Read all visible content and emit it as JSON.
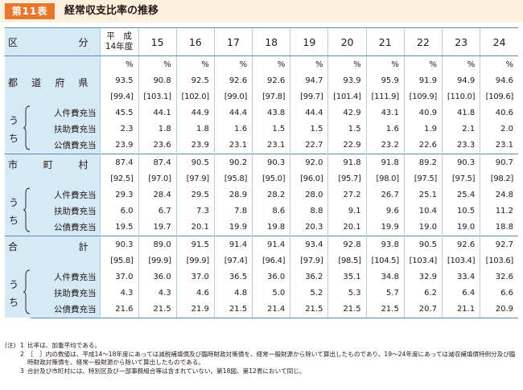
{
  "header": {
    "table_no": "第11表",
    "title": "経常収支比率の推移"
  },
  "columns": {
    "row_header_left": "区",
    "row_header_right": "分",
    "first_year_line1": "平　成",
    "first_year_line2": "14年度",
    "years": [
      "15",
      "16",
      "17",
      "18",
      "19",
      "20",
      "21",
      "22",
      "23",
      "24"
    ]
  },
  "uchi": [
    "う",
    "ち"
  ],
  "sub_labels": [
    "人件費充当",
    "扶助費充当",
    "公債費充当"
  ],
  "groups": [
    {
      "name": [
        "都",
        "道",
        "府",
        "県"
      ],
      "unit": [
        "%",
        "%",
        "%",
        "%",
        "%",
        "%",
        "%",
        "%",
        "%",
        "%",
        "%"
      ],
      "main": [
        "93.5",
        "90.8",
        "92.5",
        "92.6",
        "92.6",
        "94.7",
        "93.9",
        "95.9",
        "91.9",
        "94.9",
        "94.6"
      ],
      "bracket": [
        "[99.4]",
        "[103.1]",
        "[102.0]",
        "[99.0]",
        "[97.8]",
        "[99.7]",
        "[101.4]",
        "[111.9]",
        "[109.9]",
        "[110.0]",
        "[109.6]"
      ],
      "subs": [
        [
          "45.5",
          "44.1",
          "44.9",
          "44.4",
          "43.8",
          "44.4",
          "42.9",
          "43.1",
          "40.9",
          "41.8",
          "40.6"
        ],
        [
          "2.3",
          "1.8",
          "1.8",
          "1.6",
          "1.5",
          "1.5",
          "1.5",
          "1.6",
          "1.9",
          "2.1",
          "2.0"
        ],
        [
          "23.9",
          "23.6",
          "23.9",
          "23.1",
          "23.1",
          "22.7",
          "22.9",
          "23.2",
          "22.6",
          "23.3",
          "23.1"
        ]
      ]
    },
    {
      "name": [
        "市",
        "町",
        "村"
      ],
      "main": [
        "87.4",
        "87.4",
        "90.5",
        "90.2",
        "90.3",
        "92.0",
        "91.8",
        "91.8",
        "89.2",
        "90.3",
        "90.7"
      ],
      "bracket": [
        "[92.5]",
        "[97.0]",
        "[97.9]",
        "[95.8]",
        "[95.0]",
        "[96.0]",
        "[95.7]",
        "[98.0]",
        "[97.5]",
        "[97.5]",
        "[98.2]"
      ],
      "subs": [
        [
          "29.3",
          "28.4",
          "29.5",
          "28.9",
          "28.2",
          "28.0",
          "27.2",
          "26.7",
          "25.1",
          "25.4",
          "24.8"
        ],
        [
          "6.0",
          "6.7",
          "7.3",
          "7.8",
          "8.6",
          "8.8",
          "9.1",
          "9.6",
          "10.4",
          "10.5",
          "11.2"
        ],
        [
          "19.5",
          "19.7",
          "20.1",
          "19.9",
          "19.8",
          "20.3",
          "20.1",
          "19.9",
          "19.0",
          "19.0",
          "18.8"
        ]
      ]
    },
    {
      "name": [
        "合",
        "計"
      ],
      "main": [
        "90.3",
        "89.0",
        "91.5",
        "91.4",
        "91.4",
        "93.4",
        "92.8",
        "93.8",
        "90.5",
        "92.6",
        "92.7"
      ],
      "bracket": [
        "[95.8]",
        "[99.9]",
        "[99.9]",
        "[97.4]",
        "[96.4]",
        "[97.9]",
        "[98.5]",
        "[104.5]",
        "[103.4]",
        "[103.4]",
        "[103.6]"
      ],
      "subs": [
        [
          "37.0",
          "36.0",
          "37.0",
          "36.5",
          "36.0",
          "36.2",
          "35.1",
          "34.8",
          "32.9",
          "33.4",
          "32.6"
        ],
        [
          "4.3",
          "4.3",
          "4.6",
          "4.8",
          "5.0",
          "5.2",
          "5.3",
          "5.7",
          "6.2",
          "6.4",
          "6.6"
        ],
        [
          "21.6",
          "21.5",
          "21.9",
          "21.5",
          "21.4",
          "21.5",
          "21.5",
          "21.5",
          "20.7",
          "21.1",
          "20.9"
        ]
      ]
    }
  ],
  "notes": [
    {
      "key": "(注)",
      "num": "1",
      "text": "比率は、加重平均である。"
    },
    {
      "key": "",
      "num": "2",
      "text": "［　］内の数値は、平成14～18年度にあっては減税補填債及び臨時財政対策債を、経常一般財源から除いて算出したものであり、19～24年度にあっては減収補填債特例分及び臨時財政対策債を、経常一般財源から除いて算出したものである。"
    },
    {
      "key": "",
      "num": "3",
      "text": "合計及び市町村には、特別区及び一部事務組合等は含まれていない。第18図、第12表において同じ。"
    }
  ]
}
